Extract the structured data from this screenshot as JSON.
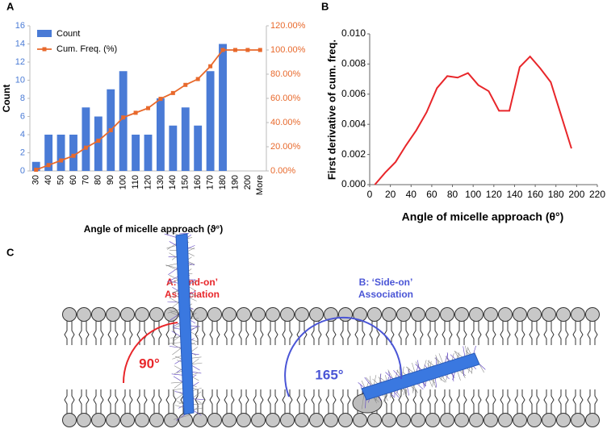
{
  "chart_data": [
    {
      "type": "bar",
      "panel_label": "A",
      "categories": [
        "30",
        "40",
        "50",
        "60",
        "70",
        "80",
        "90",
        "100",
        "110",
        "120",
        "130",
        "140",
        "150",
        "160",
        "170",
        "180",
        "190",
        "200",
        "More"
      ],
      "series": [
        {
          "name": "Count",
          "color": "#4a7bd6",
          "values": [
            1,
            4,
            4,
            4,
            7,
            6,
            9,
            11,
            4,
            4,
            8,
            5,
            7,
            5,
            11,
            14,
            0,
            0,
            0
          ]
        },
        {
          "name": "Cum. Freq. (%)",
          "color": "#e8692c",
          "type": "line",
          "axis": "y2",
          "values": [
            0.96,
            4.81,
            8.65,
            12.5,
            19.23,
            25,
            33.65,
            44.23,
            48.08,
            51.92,
            59.62,
            64.42,
            71.15,
            75.96,
            86.54,
            100,
            100,
            100,
            100
          ]
        }
      ],
      "xlabel": "Angle of micelle approach (ϑ°)",
      "ylabel": "Count",
      "ylim": [
        0,
        16
      ],
      "yticks": [
        0,
        2,
        4,
        6,
        8,
        10,
        12,
        14,
        16
      ],
      "y2lim": [
        0,
        120
      ],
      "y2ticks": [
        {
          "value": 0,
          "label": "0.00%"
        },
        {
          "value": 20,
          "label": "20.00%"
        },
        {
          "value": 40,
          "label": "40.00%"
        },
        {
          "value": 60,
          "label": "60.00%"
        },
        {
          "value": 80,
          "label": "80.00%"
        },
        {
          "value": 100,
          "label": "100.00%"
        },
        {
          "value": 120,
          "label": "120.00%"
        }
      ],
      "legend": "top-left"
    },
    {
      "type": "line",
      "panel_label": "B",
      "x": [
        5,
        15,
        25,
        35,
        45,
        55,
        65,
        75,
        85,
        95,
        105,
        115,
        125,
        135,
        145,
        155,
        165,
        175,
        185,
        195
      ],
      "series": [
        {
          "color": "#e8262a",
          "values": [
            0,
            0.0008,
            0.0015,
            0.0026,
            0.0036,
            0.0048,
            0.0064,
            0.0072,
            0.0071,
            0.0074,
            0.0066,
            0.0062,
            0.0049,
            0.0049,
            0.0078,
            0.0085,
            0.0077,
            0.0068,
            0.0046,
            0.0024
          ]
        }
      ],
      "xlabel": "Angle of micelle approach (θ°)",
      "ylabel": "First derivative of cum. freq.",
      "xlim": [
        0,
        220
      ],
      "xticks": [
        0,
        20,
        40,
        60,
        80,
        100,
        120,
        140,
        160,
        180,
        200,
        220
      ],
      "ylim": [
        0,
        0.01
      ],
      "yticks": [
        {
          "value": 0,
          "label": "0.000"
        },
        0.002,
        0.004,
        0.006,
        0.008,
        {
          "value": 0.01,
          "label": "0.010"
        }
      ]
    }
  ],
  "diagram": {
    "panel_label": "C",
    "end_on": {
      "title": "A: ‘End-on’",
      "subtitle": "Association",
      "angle": "90°"
    },
    "side_on": {
      "title": "B: ‘Side-on’",
      "subtitle": "Association",
      "angle": "165°"
    }
  }
}
